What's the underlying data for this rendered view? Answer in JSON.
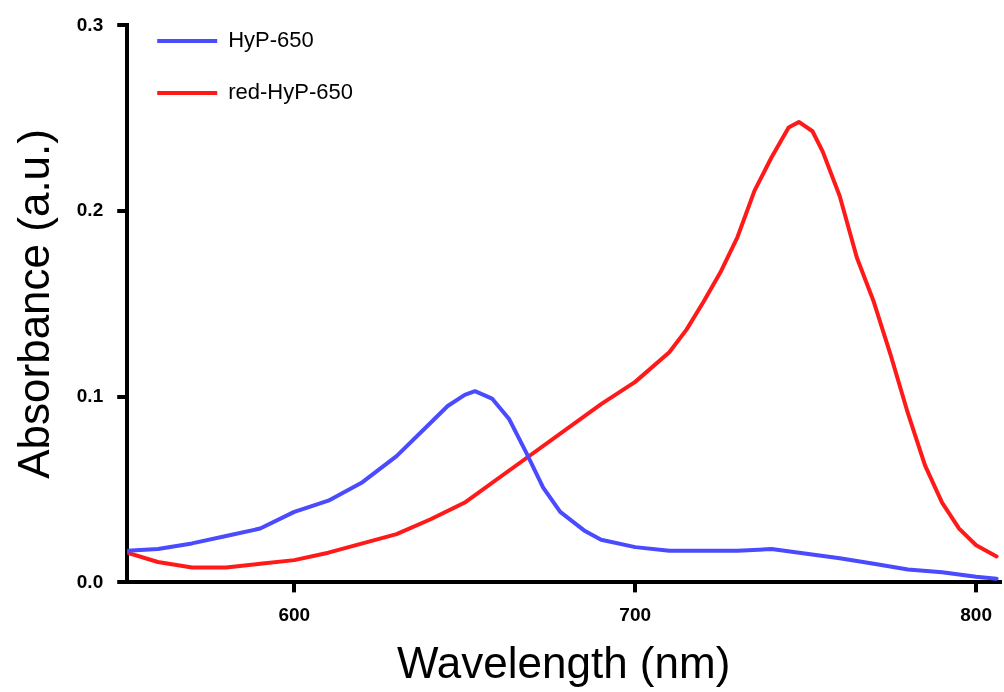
{
  "chart_data": {
    "type": "line",
    "xlabel": "Wavelength (nm)",
    "ylabel": "Absorbance (a.u.)",
    "xlim": [
      551,
      807
    ],
    "xticks": [
      600,
      700,
      800
    ],
    "ylim": [
      0,
      0.3
    ],
    "yticks": [
      {
        "value": 0,
        "label": "0.0"
      },
      {
        "value": 0.1,
        "label": "0.1"
      },
      {
        "value": 0.2,
        "label": "0.2"
      },
      {
        "value": 0.3,
        "label": "0.3"
      }
    ],
    "grid": false,
    "legend": "top left",
    "marker": "none",
    "line_style": "solid",
    "x": [
      551,
      560,
      570,
      580,
      590,
      600,
      610,
      620,
      630,
      640,
      645,
      650,
      653,
      658,
      663,
      668,
      673,
      678,
      685,
      690,
      700,
      710,
      715,
      720,
      725,
      730,
      735,
      740,
      745,
      748,
      752,
      755,
      760,
      765,
      770,
      775,
      780,
      785,
      790,
      795,
      800,
      806
    ],
    "series": [
      {
        "name": "HyP-650",
        "color": "#4a4aff",
        "values": [
          0.017,
          0.018,
          0.021,
          0.025,
          0.029,
          0.038,
          0.044,
          0.054,
          0.068,
          0.086,
          0.095,
          0.101,
          0.103,
          0.099,
          0.088,
          0.07,
          0.051,
          0.038,
          0.028,
          0.023,
          0.019,
          0.017,
          null,
          0.017,
          null,
          0.017,
          null,
          0.018,
          null,
          null,
          null,
          null,
          0.013,
          null,
          0.01,
          null,
          0.007,
          null,
          0.0055,
          null,
          0.003,
          0.002
        ]
      },
      {
        "name": "red-HyP-650",
        "color": "#ff1a1a",
        "values": [
          0.016,
          0.011,
          0.008,
          0.008,
          0.01,
          0.012,
          0.016,
          0.021,
          0.026,
          0.034,
          null,
          0.043,
          null,
          null,
          null,
          null,
          null,
          null,
          null,
          0.096,
          0.108,
          0.124,
          0.136,
          0.151,
          0.167,
          0.186,
          0.211,
          0.229,
          0.245,
          0.248,
          0.243,
          0.232,
          0.208,
          0.175,
          0.151,
          0.122,
          0.091,
          0.063,
          0.043,
          0.029,
          0.02,
          0.014
        ]
      }
    ]
  }
}
